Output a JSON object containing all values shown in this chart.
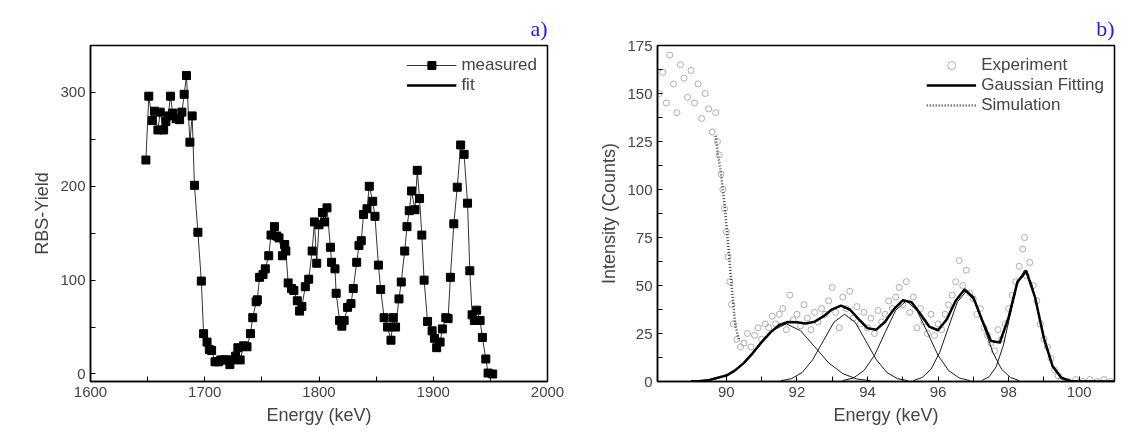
{
  "chart_data": [
    {
      "type": "line",
      "title": "a)",
      "xlabel": "Energy (keV)",
      "ylabel": "RBS-Yield",
      "xlim": [
        1600,
        2000
      ],
      "ylim": [
        -8,
        350
      ],
      "xticks": [
        1600,
        {
          "value": 1650,
          "label": null
        },
        1700,
        {
          "value": 1750,
          "label": null
        },
        1800,
        {
          "value": 1850,
          "label": null
        },
        1900,
        {
          "value": 1950,
          "label": null
        },
        2000
      ],
      "yticks": [
        0,
        {
          "value": 50,
          "label": null
        },
        100,
        {
          "value": 150,
          "label": null
        },
        200,
        {
          "value": 250,
          "label": null
        },
        300
      ],
      "grid": false,
      "legend": "top right",
      "series": [
        {
          "name": "measured",
          "color": "#000000",
          "marker": "square",
          "x": [
            1648.5,
            1651,
            1654,
            1656,
            1659,
            1661,
            1664,
            1666,
            1668,
            1670,
            1672,
            1675,
            1678,
            1680,
            1682,
            1684,
            1687,
            1689,
            1691,
            1694,
            1697,
            1699,
            1702,
            1704,
            1706,
            1709,
            1712,
            1714,
            1717,
            1719,
            1722,
            1724,
            1727,
            1729,
            1731,
            1734,
            1737,
            1740,
            1742,
            1745,
            1746,
            1748,
            1751,
            1753,
            1756,
            1758,
            1761,
            1763,
            1765,
            1768,
            1770,
            1771,
            1773,
            1776,
            1778,
            1781,
            1783,
            1785,
            1788,
            1791,
            1794,
            1796,
            1798,
            1800,
            1803,
            1805,
            1807,
            1810,
            1811,
            1814,
            1815,
            1818,
            1820,
            1822,
            1825,
            1828,
            1830,
            1833,
            1835,
            1837,
            1839,
            1842,
            1844,
            1847,
            1849,
            1852,
            1854,
            1857,
            1860,
            1863,
            1865,
            1867,
            1870,
            1872,
            1875,
            1877,
            1879,
            1881,
            1884,
            1886,
            1888,
            1890,
            1892,
            1895,
            1899,
            1901,
            1903,
            1906,
            1908,
            1911,
            1913,
            1915,
            1918,
            1921,
            1924,
            1927,
            1930,
            1932,
            1934,
            1936,
            1938,
            1941,
            1943,
            1946,
            1948,
            1952
          ],
          "values": [
            228,
            296,
            270,
            280,
            260,
            279,
            260,
            269,
            275,
            296,
            278,
            272,
            271,
            279,
            298,
            318,
            247,
            275,
            201,
            151,
            99,
            43,
            34,
            26,
            25,
            13,
            13,
            15,
            15,
            15,
            10,
            15,
            19,
            28,
            15,
            30,
            29,
            43,
            60,
            77,
            79,
            103,
            106,
            112,
            126,
            148,
            157,
            147,
            145,
            126,
            138,
            131,
            97,
            91,
            89,
            78,
            67,
            72,
            93,
            101,
            131,
            162,
            118,
            159,
            172,
            162,
            177,
            135,
            119,
            112,
            86,
            57,
            51,
            57,
            71,
            75,
            91,
            119,
            137,
            142,
            170,
            176,
            200,
            184,
            168,
            116,
            90,
            60,
            50,
            36,
            60,
            50,
            80,
            98,
            131,
            157,
            174,
            195,
            175,
            217,
            187,
            148,
            100,
            56,
            46,
            38,
            28,
            34,
            48,
            60,
            59,
            103,
            160,
            199,
            244,
            234,
            182,
            110,
            63,
            57,
            68,
            57,
            39,
            16,
            1,
            0
          ]
        },
        {
          "name": "fit",
          "color": "#000000",
          "marker": "none"
        }
      ]
    },
    {
      "type": "line",
      "title": "b)",
      "xlabel": "Energy (keV)",
      "ylabel": "Intensity (Counts)",
      "xlim": [
        88.05,
        101
      ],
      "ylim": [
        0,
        175
      ],
      "xticks": [
        90,
        {
          "value": 91,
          "label": null
        },
        92,
        {
          "value": 93,
          "label": null
        },
        94,
        {
          "value": 95,
          "label": null
        },
        96,
        {
          "value": 97,
          "label": null
        },
        98,
        {
          "value": 99,
          "label": null
        },
        100
      ],
      "yticks": [
        0,
        {
          "value": 12.5,
          "label": null
        },
        25,
        {
          "value": 37.5,
          "label": null
        },
        50,
        {
          "value": 62.5,
          "label": null
        },
        75,
        {
          "value": 87.5,
          "label": null
        },
        100,
        {
          "value": 112.5,
          "label": null
        },
        125,
        {
          "value": 137.5,
          "label": null
        },
        150,
        {
          "value": 162.5,
          "label": null
        },
        175
      ],
      "grid": false,
      "legend": "top right",
      "series": [
        {
          "name": "Experiment",
          "type": "scatter",
          "color": "#999999",
          "marker": "circle",
          "x": [
            88.1,
            88.2,
            88.3,
            88.4,
            88.5,
            88.6,
            88.7,
            88.8,
            88.9,
            89.0,
            89.1,
            89.2,
            89.3,
            89.4,
            89.5,
            89.6,
            89.7,
            89.75,
            89.8,
            89.85,
            89.9,
            89.95,
            90.0,
            90.05,
            90.1,
            90.15,
            90.2,
            90.3,
            90.4,
            90.5,
            90.6,
            90.7,
            90.8,
            90.9,
            91.0,
            91.1,
            91.2,
            91.3,
            91.4,
            91.5,
            91.6,
            91.7,
            91.8,
            91.9,
            92.0,
            92.1,
            92.2,
            92.3,
            92.4,
            92.5,
            92.6,
            92.7,
            92.8,
            92.9,
            93.0,
            93.1,
            93.2,
            93.3,
            93.4,
            93.5,
            93.6,
            93.7,
            93.8,
            93.9,
            94.0,
            94.1,
            94.2,
            94.3,
            94.4,
            94.5,
            94.6,
            94.7,
            94.8,
            94.9,
            95.0,
            95.1,
            95.2,
            95.3,
            95.4,
            95.5,
            95.6,
            95.7,
            95.8,
            95.9,
            96.0,
            96.1,
            96.2,
            96.3,
            96.4,
            96.5,
            96.6,
            96.7,
            96.8,
            96.9,
            97.0,
            97.1,
            97.2,
            97.3,
            97.4,
            97.5,
            97.6,
            97.7,
            97.8,
            97.9,
            98.0,
            98.1,
            98.2,
            98.3,
            98.4,
            98.45,
            98.5,
            98.6,
            98.7,
            98.8,
            98.9,
            99.0,
            99.1,
            99.2,
            99.3,
            99.4,
            99.5,
            99.7,
            99.9,
            100.1,
            100.3,
            100.5,
            100.7,
            100.9
          ],
          "values": [
            150,
            161,
            145,
            170,
            155,
            140,
            165,
            158,
            148,
            162,
            145,
            155,
            137,
            150,
            142,
            130,
            140,
            125,
            118,
            108,
            100,
            90,
            78,
            65,
            52,
            40,
            30,
            22,
            18,
            20,
            25,
            18,
            24,
            28,
            22,
            30,
            28,
            34,
            30,
            35,
            38,
            27,
            45,
            32,
            35,
            29,
            40,
            33,
            27,
            36,
            31,
            38,
            35,
            42,
            49,
            36,
            28,
            44,
            38,
            47,
            33,
            39,
            30,
            36,
            28,
            33,
            25,
            37,
            31,
            35,
            42,
            38,
            44,
            49,
            40,
            52,
            36,
            44,
            28,
            38,
            31,
            25,
            35,
            24,
            30,
            27,
            35,
            40,
            45,
            52,
            63,
            50,
            58,
            46,
            43,
            35,
            38,
            28,
            24,
            20,
            16,
            27,
            22,
            30,
            38,
            45,
            52,
            60,
            69,
            75,
            55,
            62,
            50,
            42,
            30,
            22,
            18,
            12,
            6,
            3,
            1,
            0,
            1,
            0,
            1,
            0,
            1,
            0
          ]
        },
        {
          "name": "Gaussian Fitting",
          "color": "#000000",
          "marker": "none",
          "x": [
            89.0,
            89.25,
            89.5,
            90.0,
            90.25,
            90.5,
            90.75,
            91.0,
            91.25,
            91.5,
            91.75,
            92.0,
            92.25,
            92.5,
            92.75,
            93.0,
            93.25,
            93.5,
            93.75,
            94.0,
            94.25,
            94.5,
            94.75,
            95.0,
            95.25,
            95.5,
            95.75,
            96.0,
            96.25,
            96.5,
            96.75,
            97.0,
            97.25,
            97.5,
            97.75,
            98.0,
            98.25,
            98.5,
            98.75,
            99.0,
            99.25,
            99.5,
            99.75,
            100.0,
            100.5,
            101.0
          ],
          "values": [
            0.1,
            0.3,
            0.7,
            3.1,
            5.8,
            9.7,
            14.8,
            20.5,
            25.6,
            29.4,
            31,
            30.8,
            30.2,
            31.1,
            33.9,
            37.6,
            39.5,
            37.5,
            32.5,
            27.8,
            27,
            31.1,
            37.7,
            42.3,
            41.3,
            35.2,
            28.6,
            26.7,
            32.4,
            42.1,
            47.9,
            43.8,
            31.9,
            21.1,
            20.3,
            33.4,
            51.9,
            57.5,
            43.8,
            22.5,
            7.8,
            1.8,
            0.3,
            0,
            0,
            0
          ]
        },
        {
          "name": "Simulation",
          "color": "#444444",
          "marker": "none",
          "line_style": "dotted",
          "x": [
            89.7,
            89.75,
            89.85,
            89.95,
            90.05,
            90.15,
            90.25,
            90.35
          ],
          "values": [
            128,
            120,
            108,
            92,
            72,
            50,
            30,
            22
          ]
        },
        {
          "color": "#000000",
          "marker": "none",
          "x": [
            89.3,
            89.7,
            90.1,
            90.5,
            90.9,
            91.3,
            91.7,
            92.1,
            92.5,
            92.9,
            93.3,
            93.7,
            94.1
          ],
          "values": [
            0.3,
            1.3,
            4.1,
            9.7,
            18.2,
            26.5,
            30,
            26.5,
            18.2,
            9.7,
            4.1,
            1.3,
            0.3
          ]
        },
        {
          "color": "#000000",
          "marker": "none",
          "x": [
            91.55,
            91.85,
            92.15,
            92.45,
            92.75,
            93.05,
            93.35,
            93.65,
            93.95,
            94.25,
            94.55,
            94.85,
            95.15
          ],
          "values": [
            0.4,
            1.5,
            4.7,
            11.4,
            21.2,
            30.9,
            35,
            30.9,
            21.2,
            11.4,
            4.7,
            1.5,
            0.4
          ]
        },
        {
          "color": "#000000",
          "marker": "none",
          "x": [
            93.3,
            93.6,
            93.9,
            94.2,
            94.5,
            94.8,
            95.1,
            95.4,
            95.7,
            96.0,
            96.3,
            96.6,
            96.9
          ],
          "values": [
            0.5,
            1.8,
            5.7,
            13.6,
            25.5,
            37.1,
            42,
            37.1,
            25.5,
            13.6,
            5.7,
            1.8,
            0.5
          ]
        },
        {
          "color": "#000000",
          "marker": "none",
          "x": [
            95.3,
            95.55,
            95.8,
            96.05,
            96.3,
            96.55,
            96.8,
            97.05,
            97.3,
            97.55,
            97.8,
            98.05,
            98.3
          ],
          "values": [
            0.5,
            2.1,
            6.4,
            15.3,
            28.5,
            41.5,
            47,
            41.5,
            28.5,
            15.3,
            6.4,
            2.1,
            0.5
          ]
        },
        {
          "color": "#000000",
          "marker": "none",
          "x": [
            97.25,
            97.45,
            97.65,
            97.85,
            98.05,
            98.25,
            98.45,
            98.65,
            98.85,
            99.05,
            99.25,
            99.45,
            99.65
          ],
          "values": [
            0.6,
            2.5,
            7.8,
            18.8,
            35.2,
            51.2,
            58,
            51.2,
            35.2,
            18.8,
            7.8,
            2.5,
            0.6
          ]
        }
      ]
    }
  ]
}
